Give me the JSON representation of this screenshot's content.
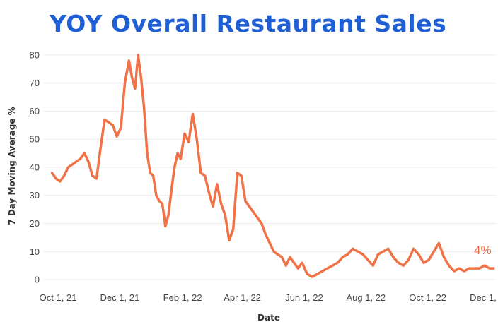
{
  "chart_data": {
    "type": "line",
    "title": "YOY Overall Restaurant Sales",
    "xlabel": "Date",
    "ylabel": "7 Day Moving Average %",
    "ylim": [
      -2,
      84
    ],
    "yticks": [
      0,
      10,
      20,
      30,
      40,
      50,
      60,
      70,
      80
    ],
    "xlim": [
      "2021-09-17",
      "2022-12-08"
    ],
    "xticks": [
      {
        "date": "2021-10-01",
        "label": "Oct 1, 21"
      },
      {
        "date": "2021-12-01",
        "label": "Dec 1, 21"
      },
      {
        "date": "2022-02-01",
        "label": "Feb 1, 22"
      },
      {
        "date": "2022-04-01",
        "label": "Apr 1, 22"
      },
      {
        "date": "2022-06-01",
        "label": "Jun 1, 22"
      },
      {
        "date": "2022-08-01",
        "label": "Aug 1, 22"
      },
      {
        "date": "2022-10-01",
        "label": "Oct 1, 22"
      },
      {
        "date": "2022-12-01",
        "label": "Dec 1, 22"
      }
    ],
    "grid": true,
    "line_color": "#f07246",
    "end_label": "4%",
    "series": [
      {
        "name": "",
        "x": [
          "2021-09-25",
          "2021-09-29",
          "2021-10-03",
          "2021-10-07",
          "2021-10-11",
          "2021-10-15",
          "2021-10-19",
          "2021-10-23",
          "2021-10-27",
          "2021-10-31",
          "2021-11-04",
          "2021-11-08",
          "2021-11-12",
          "2021-11-16",
          "2021-11-20",
          "2021-11-24",
          "2021-11-28",
          "2021-12-02",
          "2021-12-06",
          "2021-12-10",
          "2021-12-13",
          "2021-12-16",
          "2021-12-19",
          "2021-12-22",
          "2021-12-25",
          "2021-12-28",
          "2021-12-31",
          "2022-01-03",
          "2022-01-06",
          "2022-01-09",
          "2022-01-12",
          "2022-01-15",
          "2022-01-18",
          "2022-01-21",
          "2022-01-24",
          "2022-01-27",
          "2022-01-30",
          "2022-02-03",
          "2022-02-07",
          "2022-02-11",
          "2022-02-15",
          "2022-02-19",
          "2022-02-23",
          "2022-02-27",
          "2022-03-03",
          "2022-03-07",
          "2022-03-11",
          "2022-03-15",
          "2022-03-19",
          "2022-03-23",
          "2022-03-27",
          "2022-03-31",
          "2022-04-04",
          "2022-04-08",
          "2022-04-12",
          "2022-04-16",
          "2022-04-20",
          "2022-04-24",
          "2022-04-28",
          "2022-05-02",
          "2022-05-06",
          "2022-05-10",
          "2022-05-14",
          "2022-05-18",
          "2022-05-22",
          "2022-05-26",
          "2022-05-30",
          "2022-06-04",
          "2022-06-09",
          "2022-06-14",
          "2022-06-19",
          "2022-06-24",
          "2022-06-29",
          "2022-07-04",
          "2022-07-09",
          "2022-07-14",
          "2022-07-19",
          "2022-07-24",
          "2022-07-29",
          "2022-08-03",
          "2022-08-08",
          "2022-08-13",
          "2022-08-18",
          "2022-08-23",
          "2022-08-28",
          "2022-09-02",
          "2022-09-07",
          "2022-09-12",
          "2022-09-17",
          "2022-09-22",
          "2022-09-27",
          "2022-10-02",
          "2022-10-07",
          "2022-10-12",
          "2022-10-17",
          "2022-10-22",
          "2022-10-27",
          "2022-11-01",
          "2022-11-06",
          "2022-11-11",
          "2022-11-16",
          "2022-11-21",
          "2022-11-26",
          "2022-12-01",
          "2022-12-05"
        ],
        "values": [
          38,
          36,
          35,
          37,
          40,
          41,
          42,
          43,
          45,
          42,
          37,
          36,
          47,
          57,
          56,
          55,
          51,
          54,
          70,
          78,
          72,
          68,
          80,
          72,
          61,
          45,
          38,
          37,
          30,
          28,
          27,
          19,
          23,
          32,
          40,
          45,
          43,
          52,
          49,
          59,
          50,
          38,
          37,
          31,
          26,
          34,
          27,
          23,
          14,
          18,
          38,
          37,
          28,
          26,
          24,
          22,
          20,
          16,
          13,
          10,
          9,
          8,
          5,
          8,
          6,
          4,
          6,
          2,
          1,
          2,
          3,
          4,
          5,
          6,
          8,
          9,
          11,
          10,
          9,
          7,
          5,
          9,
          10,
          11,
          8,
          6,
          5,
          7,
          11,
          9,
          6,
          7,
          10,
          13,
          8,
          5,
          3,
          4,
          3,
          4,
          4,
          4,
          5,
          4,
          4
        ]
      }
    ]
  }
}
